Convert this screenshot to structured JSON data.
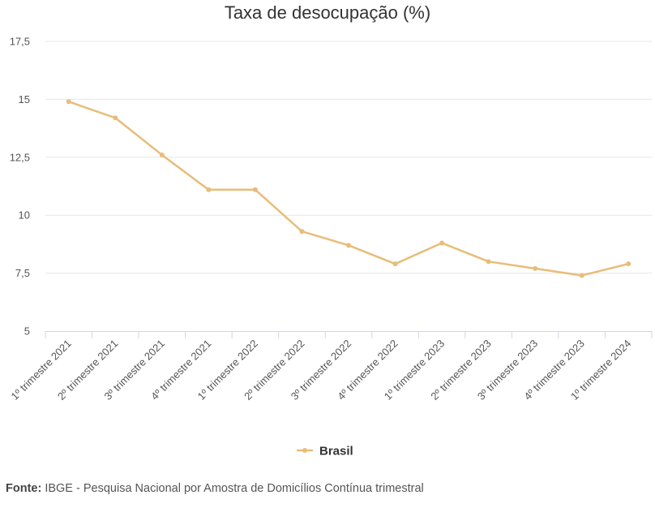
{
  "chart_data": {
    "type": "line",
    "title": "Taxa de desocupação (%)",
    "xlabel": "",
    "ylabel": "",
    "ylim": [
      5,
      17.5
    ],
    "yticks": [
      5,
      7.5,
      10,
      12.5,
      15,
      17.5
    ],
    "ytick_labels": [
      "5",
      "7,5",
      "10",
      "12,5",
      "15",
      "17,5"
    ],
    "grid": true,
    "legend_position": "bottom-center",
    "categories": [
      "1º trimestre 2021",
      "2º trimestre 2021",
      "3º trimestre 2021",
      "4º trimestre 2021",
      "1º trimestre 2022",
      "2º trimestre 2022",
      "3º trimestre 2022",
      "4º trimestre 2022",
      "1º trimestre 2023",
      "2º trimestre 2023",
      "3º trimestre 2023",
      "4º trimestre 2023",
      "1º trimestre 2024"
    ],
    "series": [
      {
        "name": "Brasil",
        "color": "#e8bd79",
        "values": [
          14.9,
          14.2,
          12.6,
          11.1,
          11.1,
          9.3,
          8.7,
          7.9,
          8.8,
          8.0,
          7.7,
          7.4,
          7.9
        ]
      }
    ]
  },
  "source": {
    "label": "Fonte:",
    "text": " IBGE - Pesquisa Nacional por Amostra de Domicílios Contínua trimestral"
  }
}
